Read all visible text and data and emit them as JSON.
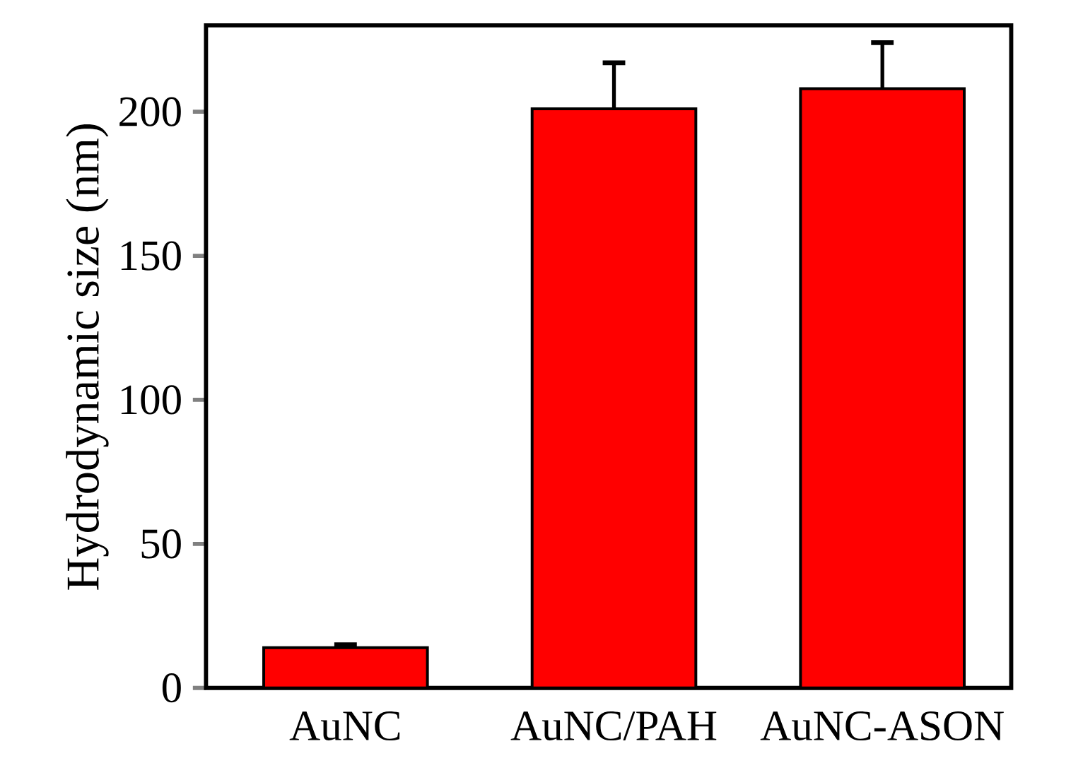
{
  "chart_data": {
    "type": "bar",
    "ylabel": "Hydrodynamic size (nm)",
    "categories": [
      "AuNC",
      "AuNC/PAH",
      "AuNC-ASON"
    ],
    "values": [
      14,
      201,
      208
    ],
    "errors": [
      [
        14,
        15
      ],
      [
        201,
        217
      ],
      [
        208,
        224
      ]
    ],
    "color": "#ff0000",
    "ylim": [
      0,
      230
    ],
    "yticks": [
      0,
      50,
      100,
      150,
      200
    ],
    "grid": false
  }
}
